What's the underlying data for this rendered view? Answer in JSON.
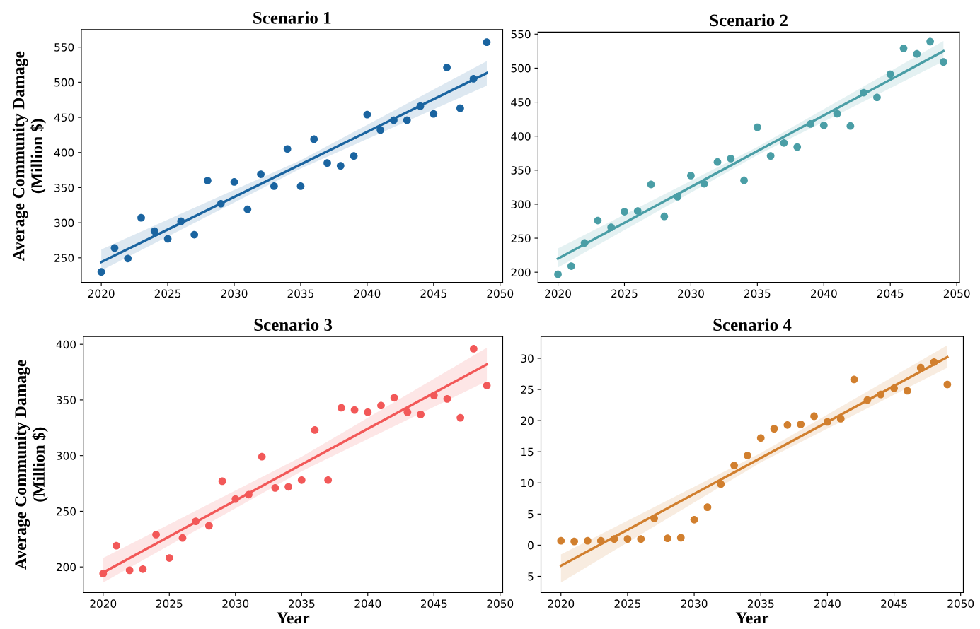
{
  "chart_data": [
    {
      "type": "scatter",
      "title": "Scenario 1",
      "ylabel": "Average Community Damage\n(Million $)",
      "grid": false,
      "xlim": [
        2018.5,
        2050.2
      ],
      "ylim": [
        215,
        575
      ],
      "xticks": [
        2020,
        2025,
        2030,
        2035,
        2040,
        2045,
        2050
      ],
      "yticks": [
        250,
        300,
        350,
        400,
        450,
        500,
        550
      ],
      "x": [
        2020,
        2021,
        2022,
        2023,
        2024,
        2025,
        2026,
        2027,
        2028,
        2029,
        2030,
        2031,
        2032,
        2033,
        2034,
        2035,
        2036,
        2037,
        2038,
        2039,
        2040,
        2041,
        2042,
        2043,
        2044,
        2045,
        2046,
        2047,
        2048,
        2049
      ],
      "series": [
        {
          "marker": "circle",
          "color": "#1a64a0",
          "values": [
            230,
            264,
            249,
            307,
            288,
            277,
            302,
            283,
            360,
            327,
            358,
            319,
            369,
            352,
            405,
            352,
            419,
            385,
            381,
            395,
            454,
            432,
            446,
            446,
            466,
            455,
            521,
            463,
            505,
            557
          ]
        },
        {
          "type": "line",
          "marker": "none",
          "color": "#1a64a0",
          "x": [
            2020,
            2035,
            2049
          ],
          "values": [
            244,
            383,
            513
          ],
          "lower": [
            232,
            377,
            495
          ],
          "upper": [
            262,
            389,
            530
          ]
        }
      ]
    },
    {
      "type": "scatter",
      "title": "Scenario 2",
      "grid": false,
      "xlim": [
        2018.5,
        2050.2
      ],
      "ylim": [
        185,
        553
      ],
      "xticks": [
        2020,
        2025,
        2030,
        2035,
        2040,
        2045,
        2050
      ],
      "yticks": [
        200,
        250,
        300,
        350,
        400,
        450,
        500,
        550
      ],
      "x": [
        2020,
        2021,
        2022,
        2023,
        2024,
        2025,
        2026,
        2027,
        2028,
        2029,
        2030,
        2031,
        2032,
        2033,
        2034,
        2035,
        2036,
        2037,
        2038,
        2039,
        2040,
        2041,
        2042,
        2043,
        2044,
        2045,
        2046,
        2047,
        2048,
        2049
      ],
      "series": [
        {
          "marker": "circle",
          "color": "#4a9ea6",
          "values": [
            197,
            209,
            243,
            276,
            266,
            289,
            290,
            329,
            282,
            311,
            342,
            330,
            362,
            367,
            335,
            413,
            371,
            390,
            384,
            418,
            416,
            433,
            415,
            464,
            457,
            491,
            529,
            521,
            539,
            509
          ]
        },
        {
          "type": "line",
          "marker": "none",
          "color": "#4a9ea6",
          "x": [
            2020,
            2035,
            2049
          ],
          "values": [
            220,
            378,
            525
          ],
          "lower": [
            207,
            372,
            510
          ],
          "upper": [
            235,
            384,
            540
          ]
        }
      ]
    },
    {
      "type": "scatter",
      "title": "Scenario 3",
      "xlabel": "Year",
      "ylabel": "Average Community Damage\n(Million $)",
      "grid": false,
      "xlim": [
        2018.5,
        2050.2
      ],
      "ylim": [
        177,
        407
      ],
      "xticks": [
        2020,
        2025,
        2030,
        2035,
        2040,
        2045,
        2050
      ],
      "yticks": [
        200,
        250,
        300,
        350,
        400
      ],
      "x": [
        2020,
        2021,
        2022,
        2023,
        2024,
        2025,
        2026,
        2027,
        2028,
        2029,
        2030,
        2031,
        2032,
        2033,
        2034,
        2035,
        2036,
        2037,
        2038,
        2039,
        2040,
        2041,
        2042,
        2043,
        2044,
        2045,
        2046,
        2047,
        2048,
        2049
      ],
      "series": [
        {
          "marker": "circle",
          "color": "#f25858",
          "values": [
            194,
            219,
            197,
            198,
            229,
            208,
            226,
            241,
            237,
            277,
            261,
            265,
            299,
            271,
            272,
            278,
            323,
            278,
            343,
            341,
            339,
            345,
            352,
            339,
            337,
            354,
            351,
            334,
            396,
            363
          ]
        },
        {
          "type": "line",
          "marker": "none",
          "color": "#f25858",
          "x": [
            2020,
            2035,
            2049
          ],
          "values": [
            195,
            292,
            382
          ],
          "lower": [
            186,
            286,
            367
          ],
          "upper": [
            208,
            299,
            397
          ]
        }
      ]
    },
    {
      "type": "scatter",
      "title": "Scenario 4",
      "xlabel": "Year",
      "grid": false,
      "xlim": [
        2018.5,
        2050.2
      ],
      "ylim": [
        -7.6,
        33.5
      ],
      "xticks": [
        2020,
        2025,
        2030,
        2035,
        2040,
        2045,
        2050
      ],
      "yticks": [
        {
          "value": -5,
          "label": "5"
        },
        0,
        5,
        10,
        15,
        20,
        25,
        30
      ],
      "x": [
        2020,
        2021,
        2022,
        2023,
        2024,
        2025,
        2026,
        2027,
        2028,
        2029,
        2030,
        2031,
        2032,
        2033,
        2034,
        2035,
        2036,
        2037,
        2038,
        2039,
        2040,
        2041,
        2042,
        2043,
        2044,
        2045,
        2046,
        2047,
        2048,
        2049
      ],
      "series": [
        {
          "marker": "circle",
          "color": "#d17f2e",
          "values": [
            0.7,
            0.6,
            0.7,
            0.7,
            1.0,
            1.0,
            1.0,
            4.3,
            1.1,
            1.2,
            4.1,
            6.1,
            9.8,
            12.8,
            14.4,
            17.2,
            18.7,
            19.3,
            19.4,
            20.7,
            19.8,
            20.3,
            26.6,
            23.3,
            24.2,
            25.2,
            24.8,
            28.5,
            29.4,
            25.8
          ]
        },
        {
          "type": "line",
          "marker": "none",
          "color": "#d17f2e",
          "x": [
            2020,
            2035,
            2049
          ],
          "values": [
            -3.3,
            14.0,
            30.2
          ],
          "lower": [
            -6.0,
            13.3,
            28.5
          ],
          "upper": [
            -1.5,
            14.8,
            32.1
          ]
        }
      ]
    }
  ]
}
